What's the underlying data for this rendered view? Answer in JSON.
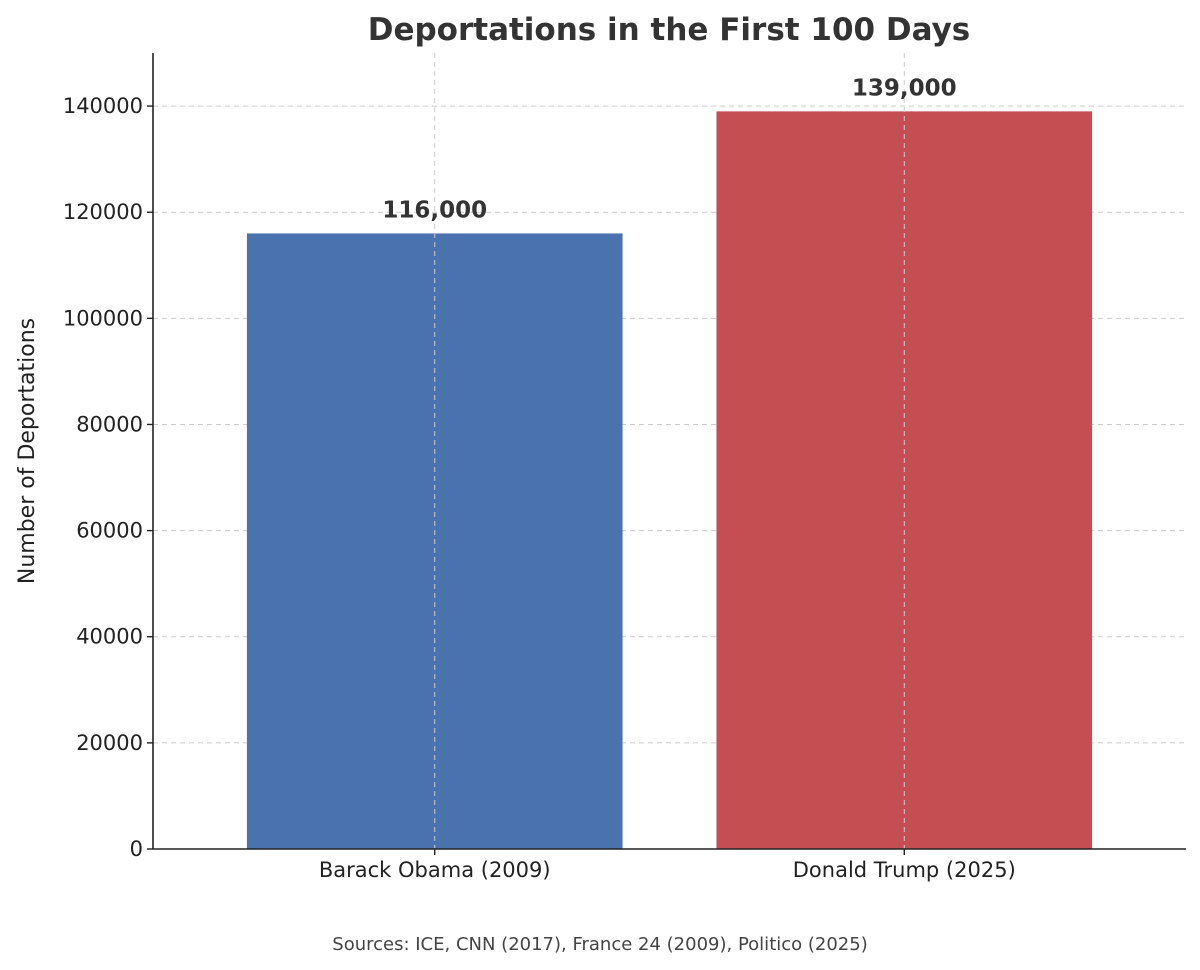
{
  "chart_data": {
    "type": "bar",
    "title": "Deportations in the First 100 Days",
    "xlabel": "",
    "ylabel": "Number of Deportations",
    "categories": [
      "Barack Obama (2009)",
      "Donald Trump (2025)"
    ],
    "values": [
      116000,
      139000
    ],
    "value_labels": [
      "116,000",
      "139,000"
    ],
    "colors": [
      "#4a72ae",
      "#c44e52"
    ],
    "ylim": [
      0,
      150000
    ],
    "yticks": [
      0,
      20000,
      40000,
      60000,
      80000,
      100000,
      120000,
      140000
    ],
    "ytick_labels": [
      "0",
      "20000",
      "40000",
      "60000",
      "80000",
      "100000",
      "120000",
      "140000"
    ],
    "grid": true
  },
  "footer": {
    "sources": "Sources: ICE, CNN (2017), France 24 (2009), Politico (2025)"
  }
}
